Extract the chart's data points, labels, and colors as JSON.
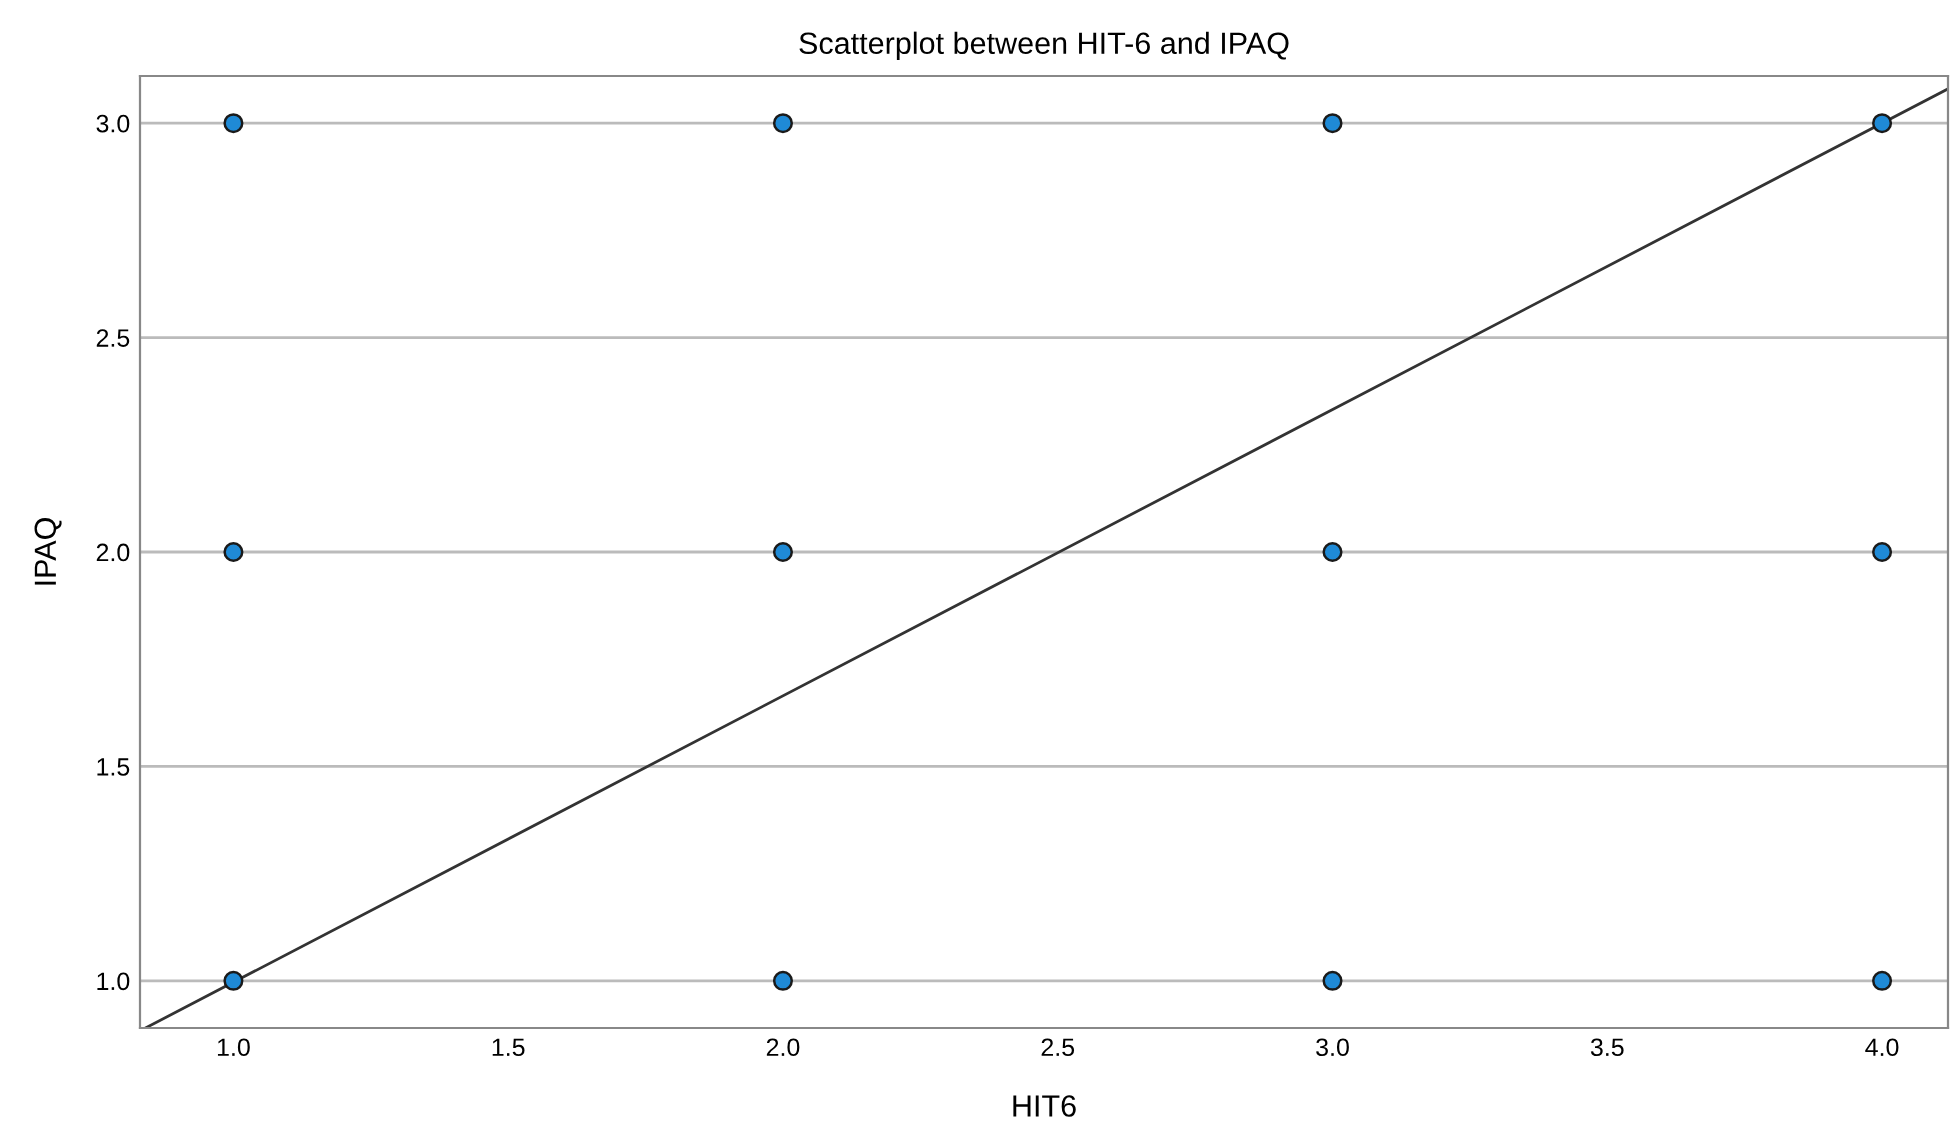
{
  "chart_data": {
    "type": "scatter",
    "title": "Scatterplot between HIT-6 and IPAQ",
    "xlabel": "HIT6",
    "ylabel": "IPAQ",
    "xlim": [
      0.83,
      4.12
    ],
    "ylim": [
      0.89,
      3.11
    ],
    "xticks": [
      {
        "value": 1,
        "label": "1.0"
      },
      {
        "value": 1.5,
        "label": "1.5"
      },
      {
        "value": 2,
        "label": "2.0"
      },
      {
        "value": 2.5,
        "label": "2.5"
      },
      {
        "value": 3,
        "label": "3.0"
      },
      {
        "value": 3.5,
        "label": "3.5"
      },
      {
        "value": 4,
        "label": "4.0"
      }
    ],
    "yticks": [
      {
        "value": 1,
        "label": "1.0"
      },
      {
        "value": 1.5,
        "label": "1.5"
      },
      {
        "value": 2,
        "label": "2.0"
      },
      {
        "value": 2.5,
        "label": "2.5"
      },
      {
        "value": 3,
        "label": "3.0"
      }
    ],
    "grid": "y",
    "series": [
      {
        "marker": "circle",
        "color": "#1f8ad6",
        "x": [
          1,
          2,
          3,
          4,
          1,
          2,
          3,
          4,
          1,
          2,
          3,
          4
        ],
        "values": [
          3,
          3,
          3,
          3,
          2,
          2,
          2,
          2,
          1,
          1,
          1,
          1
        ]
      },
      {
        "type": "line",
        "color": "#333333",
        "line_style": "solid",
        "x": [
          0.84,
          4.12
        ],
        "values": [
          0.89,
          3.08
        ]
      }
    ]
  }
}
